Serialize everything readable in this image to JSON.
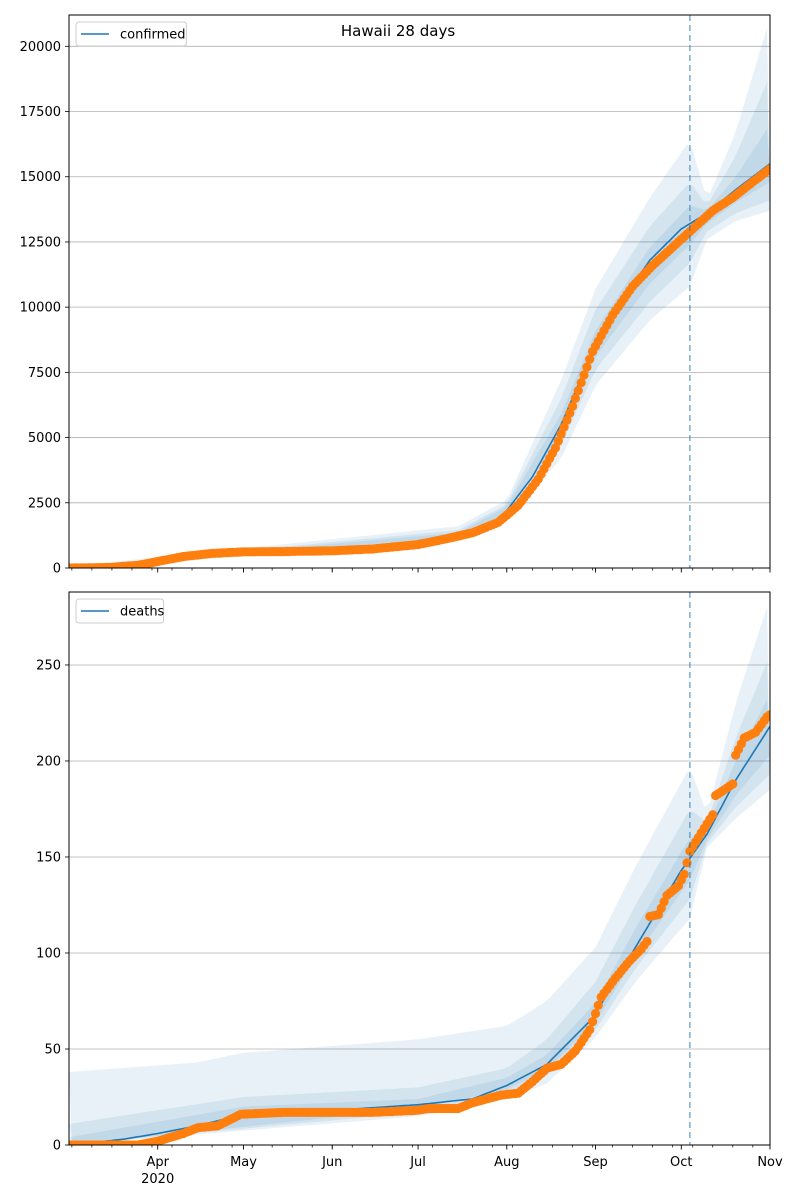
{
  "figure": {
    "title": "Hawaii 28 days"
  },
  "colors": {
    "model_line": "#1f77b4",
    "band": "#1f77b4",
    "observed": "#ff7f0e",
    "grid": "#b0b0b0",
    "forecast_marker": "#1f77b4"
  },
  "chart_data": [
    {
      "type": "line",
      "panel": "top",
      "legend": [
        "confirmed"
      ],
      "legend_position": "top-left",
      "grid": "horizontal",
      "x_axis": {
        "type": "date",
        "range": [
          "2020-03-01",
          "2020-11-01"
        ],
        "tick_labels": [
          {
            "date": "2020-04-01",
            "label": "Apr",
            "sub": "2020"
          },
          {
            "date": "2020-05-01",
            "label": "May"
          },
          {
            "date": "2020-06-01",
            "label": "Jun"
          },
          {
            "date": "2020-07-01",
            "label": "Jul"
          },
          {
            "date": "2020-08-01",
            "label": "Aug"
          },
          {
            "date": "2020-09-01",
            "label": "Sep"
          },
          {
            "date": "2020-10-01",
            "label": "Oct"
          },
          {
            "date": "2020-11-01",
            "label": "Nov"
          }
        ]
      },
      "y_axis": {
        "range": [
          0,
          21200
        ],
        "ticks": [
          0,
          2500,
          5000,
          7500,
          10000,
          12500,
          15000,
          17500,
          20000
        ]
      },
      "forecast_start": "2020-10-04",
      "model": [
        [
          "2020-03-01",
          20
        ],
        [
          "2020-03-15",
          50
        ],
        [
          "2020-04-01",
          280
        ],
        [
          "2020-04-15",
          520
        ],
        [
          "2020-05-01",
          620
        ],
        [
          "2020-05-15",
          640
        ],
        [
          "2020-06-01",
          670
        ],
        [
          "2020-06-15",
          740
        ],
        [
          "2020-07-01",
          900
        ],
        [
          "2020-07-15",
          1250
        ],
        [
          "2020-07-25",
          1550
        ],
        [
          "2020-08-01",
          2200
        ],
        [
          "2020-08-10",
          3500
        ],
        [
          "2020-08-20",
          5500
        ],
        [
          "2020-08-31",
          8300
        ],
        [
          "2020-09-10",
          10200
        ],
        [
          "2020-09-20",
          11800
        ],
        [
          "2020-10-01",
          13000
        ],
        [
          "2020-10-10",
          13600
        ],
        [
          "2020-10-20",
          14500
        ],
        [
          "2020-11-01",
          15500
        ]
      ],
      "bands": [
        {
          "low": [
            [
              "2020-03-01",
              0
            ],
            [
              "2020-07-15",
              1000
            ],
            [
              "2020-08-01",
              1800
            ],
            [
              "2020-08-20",
              4200
            ],
            [
              "2020-09-01",
              7000
            ],
            [
              "2020-09-20",
              9500
            ],
            [
              "2020-10-04",
              10800
            ],
            [
              "2020-10-10",
              12600
            ],
            [
              "2020-10-20",
              13300
            ],
            [
              "2020-11-01",
              13700
            ]
          ],
          "high": [
            [
              "2020-03-01",
              60
            ],
            [
              "2020-07-15",
              1600
            ],
            [
              "2020-08-01",
              2600
            ],
            [
              "2020-08-20",
              7200
            ],
            [
              "2020-09-01",
              10700
            ],
            [
              "2020-09-20",
              14200
            ],
            [
              "2020-10-04",
              16400
            ],
            [
              "2020-10-10",
              14100
            ],
            [
              "2020-10-20",
              16700
            ],
            [
              "2020-11-01",
              21100
            ]
          ]
        },
        {
          "low": [
            [
              "2020-03-01",
              0
            ],
            [
              "2020-07-15",
              1100
            ],
            [
              "2020-08-01",
              1900
            ],
            [
              "2020-08-20",
              4700
            ],
            [
              "2020-09-01",
              7600
            ],
            [
              "2020-09-20",
              10200
            ],
            [
              "2020-10-04",
              11700
            ],
            [
              "2020-10-10",
              12900
            ],
            [
              "2020-10-20",
              13600
            ],
            [
              "2020-11-01",
              14100
            ]
          ],
          "high": [
            [
              "2020-03-01",
              45
            ],
            [
              "2020-07-15",
              1450
            ],
            [
              "2020-08-01",
              2450
            ],
            [
              "2020-08-20",
              6500
            ],
            [
              "2020-09-01",
              9900
            ],
            [
              "2020-09-20",
              13100
            ],
            [
              "2020-10-04",
              14800
            ],
            [
              "2020-10-10",
              13900
            ],
            [
              "2020-10-20",
              15800
            ],
            [
              "2020-11-01",
              18900
            ]
          ]
        },
        {
          "low": [
            [
              "2020-03-01",
              5
            ],
            [
              "2020-07-15",
              1180
            ],
            [
              "2020-08-01",
              2050
            ],
            [
              "2020-08-20",
              5100
            ],
            [
              "2020-09-01",
              8100
            ],
            [
              "2020-09-20",
              10900
            ],
            [
              "2020-10-04",
              12400
            ],
            [
              "2020-10-10",
              13200
            ],
            [
              "2020-10-20",
              14000
            ],
            [
              "2020-11-01",
              14800
            ]
          ],
          "high": [
            [
              "2020-03-01",
              35
            ],
            [
              "2020-07-15",
              1350
            ],
            [
              "2020-08-01",
              2350
            ],
            [
              "2020-08-20",
              5900
            ],
            [
              "2020-09-01",
              9100
            ],
            [
              "2020-09-20",
              12300
            ],
            [
              "2020-10-04",
              13900
            ],
            [
              "2020-10-10",
              13700
            ],
            [
              "2020-10-20",
              15000
            ],
            [
              "2020-11-01",
              17000
            ]
          ]
        }
      ],
      "observed": [
        [
          "2020-03-01",
          0
        ],
        [
          "2020-03-15",
          20
        ],
        [
          "2020-03-25",
          100
        ],
        [
          "2020-04-01",
          250
        ],
        [
          "2020-04-10",
          440
        ],
        [
          "2020-04-20",
          560
        ],
        [
          "2020-05-01",
          620
        ],
        [
          "2020-05-15",
          630
        ],
        [
          "2020-06-01",
          660
        ],
        [
          "2020-06-15",
          730
        ],
        [
          "2020-07-01",
          900
        ],
        [
          "2020-07-10",
          1100
        ],
        [
          "2020-07-20",
          1350
        ],
        [
          "2020-07-29",
          1750
        ],
        [
          "2020-08-05",
          2400
        ],
        [
          "2020-08-12",
          3400
        ],
        [
          "2020-08-18",
          4600
        ],
        [
          "2020-08-24",
          6200
        ],
        [
          "2020-08-31",
          8300
        ],
        [
          "2020-09-07",
          9700
        ],
        [
          "2020-09-14",
          10800
        ],
        [
          "2020-09-21",
          11600
        ],
        [
          "2020-09-28",
          12300
        ],
        [
          "2020-10-05",
          13000
        ],
        [
          "2020-10-12",
          13700
        ],
        [
          "2020-10-19",
          14200
        ],
        [
          "2020-10-26",
          14800
        ],
        [
          "2020-11-01",
          15300
        ]
      ]
    },
    {
      "type": "line",
      "panel": "bottom",
      "legend": [
        "deaths"
      ],
      "legend_position": "top-left",
      "grid": "horizontal",
      "x_axis": {
        "type": "date",
        "range": [
          "2020-03-01",
          "2020-11-01"
        ],
        "tick_labels": [
          {
            "date": "2020-04-01",
            "label": "Apr",
            "sub": "2020"
          },
          {
            "date": "2020-05-01",
            "label": "May"
          },
          {
            "date": "2020-06-01",
            "label": "Jun"
          },
          {
            "date": "2020-07-01",
            "label": "Jul"
          },
          {
            "date": "2020-08-01",
            "label": "Aug"
          },
          {
            "date": "2020-09-01",
            "label": "Sep"
          },
          {
            "date": "2020-10-01",
            "label": "Oct"
          },
          {
            "date": "2020-11-01",
            "label": "Nov"
          }
        ]
      },
      "y_axis": {
        "range": [
          0,
          288
        ],
        "ticks": [
          0,
          50,
          100,
          150,
          200,
          250
        ]
      },
      "forecast_start": "2020-10-04",
      "model": [
        [
          "2020-03-01",
          0
        ],
        [
          "2020-03-20",
          3
        ],
        [
          "2020-04-01",
          6
        ],
        [
          "2020-04-15",
          10
        ],
        [
          "2020-05-01",
          16
        ],
        [
          "2020-06-01",
          18
        ],
        [
          "2020-07-01",
          21
        ],
        [
          "2020-07-20",
          24
        ],
        [
          "2020-08-01",
          31
        ],
        [
          "2020-08-15",
          42
        ],
        [
          "2020-08-31",
          66
        ],
        [
          "2020-09-15",
          103
        ],
        [
          "2020-10-01",
          143
        ],
        [
          "2020-10-10",
          162
        ],
        [
          "2020-10-20",
          190
        ],
        [
          "2020-11-01",
          218
        ]
      ],
      "bands": [
        {
          "low": [
            [
              "2020-03-01",
              0
            ],
            [
              "2020-07-01",
              15
            ],
            [
              "2020-08-01",
              24
            ],
            [
              "2020-08-15",
              32
            ],
            [
              "2020-09-01",
              56
            ],
            [
              "2020-09-15",
              85
            ],
            [
              "2020-10-04",
              118
            ],
            [
              "2020-10-10",
              155
            ],
            [
              "2020-10-20",
              170
            ],
            [
              "2020-11-01",
              185
            ]
          ],
          "high": [
            [
              "2020-03-01",
              38
            ],
            [
              "2020-04-15",
              43
            ],
            [
              "2020-05-01",
              48
            ],
            [
              "2020-07-01",
              55
            ],
            [
              "2020-08-01",
              62
            ],
            [
              "2020-08-15",
              75
            ],
            [
              "2020-09-01",
              103
            ],
            [
              "2020-09-15",
              145
            ],
            [
              "2020-10-04",
              197
            ],
            [
              "2020-10-10",
              172
            ],
            [
              "2020-10-20",
              230
            ],
            [
              "2020-11-01",
              285
            ]
          ]
        },
        {
          "low": [
            [
              "2020-03-01",
              0
            ],
            [
              "2020-07-01",
              17
            ],
            [
              "2020-08-01",
              27
            ],
            [
              "2020-08-15",
              36
            ],
            [
              "2020-09-01",
              60
            ],
            [
              "2020-09-15",
              92
            ],
            [
              "2020-10-04",
              128
            ],
            [
              "2020-10-10",
              157
            ],
            [
              "2020-10-20",
              176
            ],
            [
              "2020-11-01",
              193
            ]
          ],
          "high": [
            [
              "2020-03-01",
              11
            ],
            [
              "2020-05-01",
              25
            ],
            [
              "2020-07-01",
              30
            ],
            [
              "2020-08-01",
              40
            ],
            [
              "2020-08-15",
              55
            ],
            [
              "2020-09-01",
              85
            ],
            [
              "2020-09-15",
              125
            ],
            [
              "2020-10-04",
              175
            ],
            [
              "2020-10-10",
              168
            ],
            [
              "2020-10-20",
              212
            ],
            [
              "2020-11-01",
              255
            ]
          ]
        },
        {
          "low": [
            [
              "2020-03-01",
              0
            ],
            [
              "2020-07-01",
              19
            ],
            [
              "2020-08-01",
              29
            ],
            [
              "2020-08-15",
              39
            ],
            [
              "2020-09-01",
              64
            ],
            [
              "2020-09-15",
              98
            ],
            [
              "2020-10-04",
              138
            ],
            [
              "2020-10-10",
              159
            ],
            [
              "2020-10-20",
              182
            ],
            [
              "2020-11-01",
              203
            ]
          ],
          "high": [
            [
              "2020-03-01",
              4
            ],
            [
              "2020-05-01",
              20
            ],
            [
              "2020-07-01",
              24
            ],
            [
              "2020-08-01",
              35
            ],
            [
              "2020-08-15",
              47
            ],
            [
              "2020-09-01",
              74
            ],
            [
              "2020-09-15",
              113
            ],
            [
              "2020-10-04",
              160
            ],
            [
              "2020-10-10",
              165
            ],
            [
              "2020-10-20",
              200
            ],
            [
              "2020-11-01",
              235
            ]
          ]
        }
      ],
      "observed": [
        [
          "2020-03-01",
          0
        ],
        [
          "2020-03-25",
          0
        ],
        [
          "2020-04-01",
          2
        ],
        [
          "2020-04-10",
          6
        ],
        [
          "2020-04-15",
          9
        ],
        [
          "2020-04-22",
          10
        ],
        [
          "2020-04-30",
          16
        ],
        [
          "2020-05-15",
          17
        ],
        [
          "2020-06-15",
          17
        ],
        [
          "2020-06-30",
          18
        ],
        [
          "2020-07-05",
          19
        ],
        [
          "2020-07-15",
          19
        ],
        [
          "2020-07-20",
          22
        ],
        [
          "2020-07-25",
          24
        ],
        [
          "2020-07-30",
          26
        ],
        [
          "2020-08-05",
          27
        ],
        [
          "2020-08-10",
          33
        ],
        [
          "2020-08-15",
          40
        ],
        [
          "2020-08-20",
          42
        ],
        [
          "2020-08-25",
          49
        ],
        [
          "2020-08-30",
          60
        ],
        [
          "2020-09-03",
          77
        ],
        [
          "2020-09-08",
          87
        ],
        [
          "2020-09-13",
          96
        ],
        [
          "2020-09-17",
          102
        ],
        [
          "2020-09-19",
          106
        ],
        [
          "2020-09-20",
          119
        ],
        [
          "2020-09-23",
          120
        ],
        [
          "2020-09-26",
          130
        ],
        [
          "2020-09-30",
          135
        ],
        [
          "2020-10-02",
          141
        ],
        [
          "2020-10-04",
          153
        ],
        [
          "2020-10-09",
          165
        ],
        [
          "2020-10-12",
          172
        ],
        [
          "2020-10-13",
          182
        ],
        [
          "2020-10-19",
          188
        ],
        [
          "2020-10-20",
          203
        ],
        [
          "2020-10-23",
          212
        ],
        [
          "2020-10-27",
          215
        ],
        [
          "2020-10-31",
          223
        ],
        [
          "2020-11-01",
          224
        ]
      ]
    }
  ]
}
